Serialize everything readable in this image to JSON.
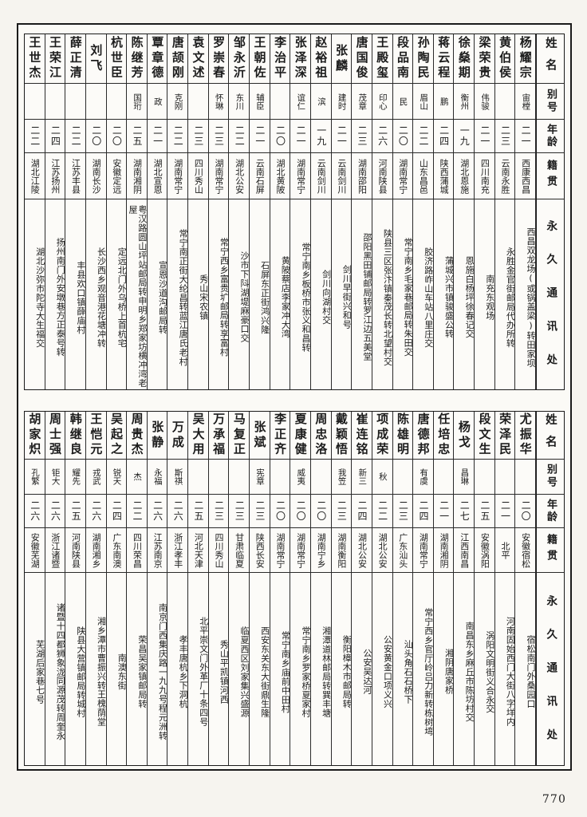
{
  "page": {
    "number": "770"
  },
  "headers": {
    "name": "姓名",
    "alias": "别号",
    "age": "年龄",
    "native": "籍贯",
    "address": "永久通讯处"
  },
  "tables": [
    {
      "entries": [
        {
          "name": "杨耀宗",
          "alias": "宙樘",
          "age": "二一",
          "native": "西康西昌",
          "address": "西昌双龙场(或锅盖梁)转田家坝"
        },
        {
          "name": "黄伯侯",
          "alias": "",
          "age": "二三",
          "native": "云南永胜",
          "address": "永胜金官街邮局代办所转"
        },
        {
          "name": "梁荣贵",
          "alias": "伟骏",
          "age": "二一",
          "native": "四川南充",
          "address": "南充东观场"
        },
        {
          "name": "徐燊期",
          "alias": "衡州",
          "age": "一九",
          "native": "湖北恩施",
          "address": "恩施白杨坪徐春记交"
        },
        {
          "name": "蒋云程",
          "alias": "鹏",
          "age": "二四",
          "native": "陕西蒲城",
          "address": "蒲城兴市镇骏盛公转"
        },
        {
          "name": "孙陶民",
          "alias": "眉山",
          "age": "二二",
          "native": "山东昌邑",
          "address": "胶济路岞山车站八里庄交"
        },
        {
          "name": "段品南",
          "alias": "民",
          "age": "二〇",
          "native": "湖南常宁",
          "address": "常宁南乡毛家巷邮局转朱田交"
        },
        {
          "name": "王殿玺",
          "alias": "印心",
          "age": "二六",
          "native": "河南陕县",
          "address": "陕县三区张汴镇秦茂长转北望村交"
        },
        {
          "name": "唐国俊",
          "alias": "茂章",
          "age": "二三",
          "native": "湖南邵阳",
          "address": "邵阳黑田铺邮局转罗江边五美堂"
        },
        {
          "name": "张麟",
          "alias": "建时",
          "age": "二一",
          "native": "云南剑川",
          "address": "剑川早街兴和号"
        },
        {
          "name": "赵裕祖",
          "alias": "滨",
          "age": "一九",
          "native": "云南剑川",
          "address": "剑川向湖村交"
        },
        {
          "name": "张泽深",
          "alias": "谊仁",
          "age": "二一",
          "native": "湖南常宁",
          "address": "常宁南乡板桥市张义和昌转"
        },
        {
          "name": "李治平",
          "alias": "",
          "age": "二〇",
          "native": "湖北黄陂",
          "address": "黄陂蔡店李家冲大湾"
        },
        {
          "name": "王朝佐",
          "alias": "辅臣",
          "age": "二一",
          "native": "云南石屏",
          "address": "石屏东正街鸿兴隆"
        },
        {
          "name": "邹永沂",
          "alias": "东川",
          "age": "二二",
          "native": "湖北公安",
          "address": "沙市下阧湖堤麻豪口交"
        },
        {
          "name": "罗崇春",
          "alias": "怀琳",
          "age": "二三",
          "native": "湖南常宁",
          "address": "常宁西乡富贵圹邮局转享富村"
        },
        {
          "name": "袁文述",
          "alias": "",
          "age": "二三",
          "native": "四川秀山",
          "address": "秀山宋农镇"
        },
        {
          "name": "唐颉刚",
          "alias": "克刚",
          "age": "二二",
          "native": "湖南常宁",
          "address": "常宁南正街大纶昌转蓝江唐氏老村"
        },
        {
          "name": "覃章德",
          "alias": "政",
          "age": "二一",
          "native": "湖北宣恩",
          "address": "宣恩沙道沟邮局转"
        },
        {
          "name": "陈继芳",
          "alias": "国珩",
          "age": "二五",
          "native": "湖南湘阴",
          "address": "粤汉路圆山坪站邮局转申明乡郑家坊横冲湾老屋"
        },
        {
          "name": "杭世臣",
          "alias": "",
          "age": "二〇",
          "native": "安徽定远",
          "address": "定远北门外乌桥上首杭宅"
        },
        {
          "name": "刘飞",
          "alias": "",
          "age": "二〇",
          "native": "湖南长沙",
          "address": "长沙西乡观音港花塘冲转"
        },
        {
          "name": "薛正清",
          "alias": "",
          "age": "二二",
          "native": "江苏丰县",
          "address": "丰县欢口镇薛庙村"
        },
        {
          "name": "王荣江",
          "alias": "",
          "age": "二四",
          "native": "江苏扬州",
          "address": "扬州南门外安墩巷方正泰号转"
        },
        {
          "name": "王世杰",
          "alias": "",
          "age": "二二",
          "native": "湖北江陵",
          "address": "湖北沙弥市陀寺大生福交"
        }
      ]
    },
    {
      "entries": [
        {
          "name": "尤振华",
          "alias": "",
          "age": "二〇",
          "native": "安徽宿松",
          "address": "宿松南门外桑园口"
        },
        {
          "name": "荣泽民",
          "alias": "",
          "age": "二一",
          "native": "北平",
          "address": "河南固始西门大街八字垟内"
        },
        {
          "name": "段文生",
          "alias": "",
          "age": "二五",
          "native": "安徽涡阳",
          "address": "涡阳文明街义合永交"
        },
        {
          "name": "杨戈",
          "alias": "昌琳",
          "age": "二七",
          "native": "江西南昌",
          "address": "南昌东乡麻丘市陈坊村交"
        },
        {
          "name": "任培忠",
          "alias": "",
          "age": "二一",
          "native": "湖南湘阴",
          "address": "湘阴唐家桥"
        },
        {
          "name": "唐德邦",
          "alias": "有虞",
          "age": "二四",
          "native": "湖南常宁",
          "address": "常宁西乡官厅岭吕力新转栋树塆"
        },
        {
          "name": "陈雄明",
          "alias": "",
          "age": "二三",
          "native": "广东汕头",
          "address": "汕头角石石桥下"
        },
        {
          "name": "项成荣",
          "alias": "秋",
          "age": "二二",
          "native": "湖北公安",
          "address": "公安黄金口项义兴"
        },
        {
          "name": "崔连铭",
          "alias": "新三",
          "age": "二四",
          "native": "湖北公安",
          "address": "公安吴达河"
        },
        {
          "name": "戴颖悟",
          "alias": "我笠",
          "age": "二三",
          "native": "湖南衡阳",
          "address": "衡阳樟木市邮局转"
        },
        {
          "name": "周忠洛",
          "alias": "",
          "age": "二〇",
          "native": "湖南宁乡",
          "address": "湘潭道林邮局转巽丰塘"
        },
        {
          "name": "夏康健",
          "alias": "威夷",
          "age": "二〇",
          "native": "湖南常宁",
          "address": "常宁南乡罗家桥夏家村"
        },
        {
          "name": "李正齐",
          "alias": "",
          "age": "二〇",
          "native": "湖南常宁",
          "address": "常宁南乡庙前中田村"
        },
        {
          "name": "张斌",
          "alias": "宪章",
          "age": "二三",
          "native": "陕西长安",
          "address": "西安东关东大街鼎生隆"
        },
        {
          "name": "马复正",
          "alias": "",
          "age": "二三",
          "native": "甘肃临夏",
          "address": "临夏西区刘家集兴盛源"
        },
        {
          "name": "万承福",
          "alias": "",
          "age": "二三",
          "native": "四川秀山",
          "address": "秀山平凯镇河西"
        },
        {
          "name": "吴大用",
          "alias": "",
          "age": "二五",
          "native": "河北天津",
          "address": "北平崇文门外革厂十条四号"
        },
        {
          "name": "万成",
          "alias": "斯祺",
          "age": "二六",
          "native": "浙江孝丰",
          "address": "孝丰唐杭乡下洞杭"
        },
        {
          "name": "张静",
          "alias": "永福",
          "age": "二六",
          "native": "江苏南京",
          "address": "南京门西集庆路一九九号程元洲转"
        },
        {
          "name": "周贵杰",
          "alias": "杰",
          "age": "二二",
          "native": "四川荣昌",
          "address": "荣昌吴家镇邮局转"
        },
        {
          "name": "吴起之",
          "alias": "锐天",
          "age": "二四",
          "native": "广东南澳",
          "address": "南澳东街"
        },
        {
          "name": "王恺元",
          "alias": "戎武",
          "age": "二六",
          "native": "湖南湘乡",
          "address": "湘乡潭市曹振兴转王槐荫堂"
        },
        {
          "name": "韩继良",
          "alias": "耀先",
          "age": "二五",
          "native": "河南陕县",
          "address": "陕县大营镇邮局转城村"
        },
        {
          "name": "周士强",
          "alias": "钜大",
          "age": "二六",
          "native": "浙江诸暨",
          "address": "诸暨十四都狮象泷同源茂转周奎永"
        },
        {
          "name": "胡家炽",
          "alias": "孔繁",
          "age": "二六",
          "native": "安徽芜湖",
          "address": "芜湖后家巷七号"
        }
      ]
    }
  ]
}
